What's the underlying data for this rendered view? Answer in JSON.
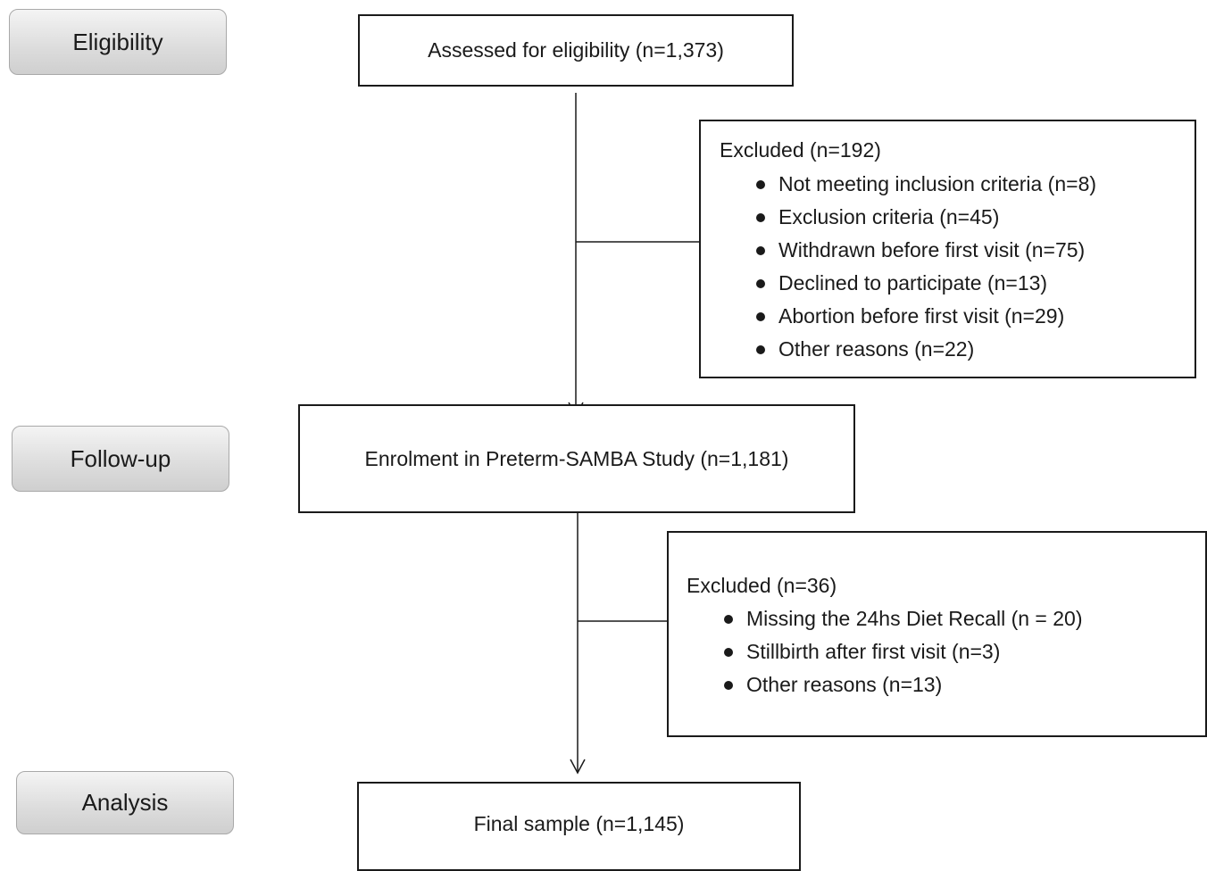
{
  "stages": {
    "eligibility": "Eligibility",
    "follow_up": "Follow-up",
    "analysis": "Analysis"
  },
  "boxes": {
    "assessed": "Assessed for eligibility (n=1,373)",
    "enrolment": "Enrolment in Preterm-SAMBA Study (n=1,181)",
    "final": "Final sample (n=1,145)"
  },
  "exclusions_1": {
    "title": "Excluded (n=192)",
    "items": [
      "Not meeting inclusion criteria (n=8)",
      "Exclusion criteria (n=45)",
      "Withdrawn before first visit (n=75)",
      "Declined to participate (n=13)",
      "Abortion before first visit (n=29)",
      "Other reasons (n=22)"
    ]
  },
  "exclusions_2": {
    "title": "Excluded (n=36)",
    "items": [
      "Missing the 24hs Diet Recall (n = 20)",
      "Stillbirth after first visit (n=3)",
      "Other reasons (n=13)"
    ]
  },
  "colors": {
    "line": "#1a1a1a",
    "stage_fill": "#dcdcdc",
    "stage_border": "#a9a9a9"
  }
}
